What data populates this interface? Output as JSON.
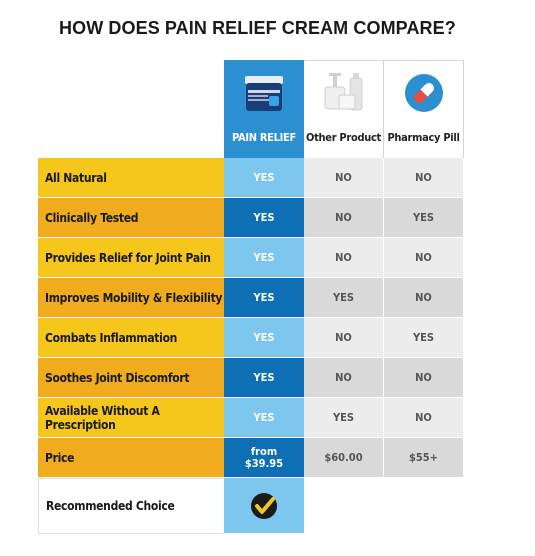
{
  "title": "HOW DOES PAIN RELIEF CREAM COMPARE?",
  "columns": [
    {
      "name": "PAIN RELIEF",
      "icon": "pain-relief-jar-icon"
    },
    {
      "name": "Other Product",
      "icon": "generic-bottles-icon"
    },
    {
      "name": "Pharmacy Pill",
      "icon": "pill-capsule-icon"
    }
  ],
  "rows": [
    {
      "feature": "All Natural",
      "values": [
        "YES",
        "NO",
        "NO"
      ]
    },
    {
      "feature": "Clinically Tested",
      "values": [
        "YES",
        "NO",
        "YES"
      ]
    },
    {
      "feature": "Provides Relief for Joint Pain",
      "values": [
        "YES",
        "NO",
        "NO"
      ]
    },
    {
      "feature": "Improves Mobility & Flexibility",
      "values": [
        "YES",
        "YES",
        "NO"
      ]
    },
    {
      "feature": "Combats Inflammation",
      "values": [
        "YES",
        "NO",
        "YES"
      ]
    },
    {
      "feature": "Soothes Joint Discomfort",
      "values": [
        "YES",
        "NO",
        "NO"
      ]
    },
    {
      "feature": "Available Without A Prescription",
      "values": [
        "YES",
        "YES",
        "NO"
      ]
    },
    {
      "feature": "Price",
      "values": [
        "from $39.95",
        "$60.00",
        "$55+"
      ]
    }
  ],
  "recommended": {
    "feature": "Recommended Choice",
    "icon": "checkmark-badge-icon"
  },
  "colors": {
    "yellow": "#f5c61b",
    "orange": "#f0ac1c",
    "blue_light": "#7dc6ee",
    "blue_dark": "#0f6fb4",
    "header_blue": "#2c8fd0"
  }
}
